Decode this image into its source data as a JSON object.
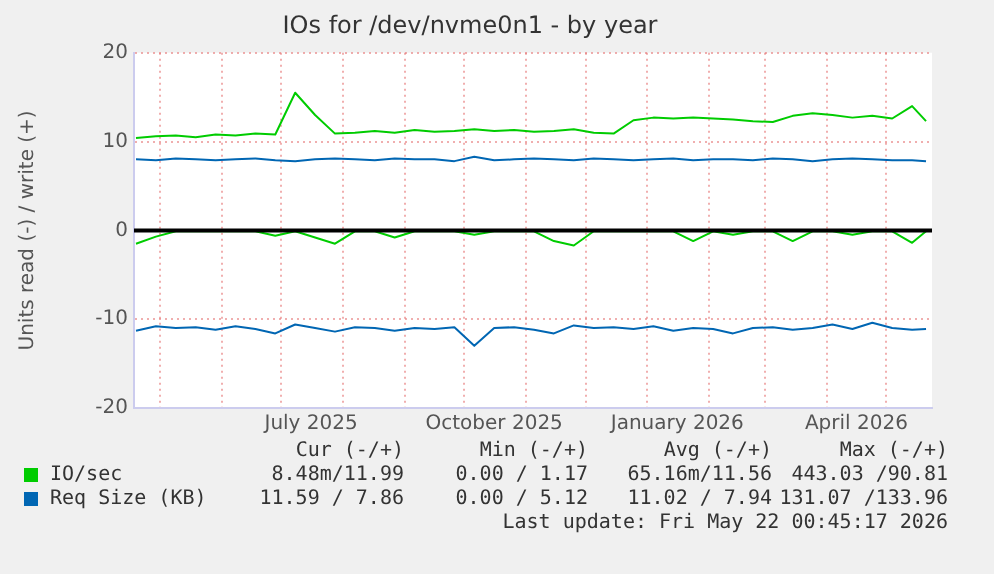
{
  "chart_data": {
    "type": "line",
    "title": "IOs for /dev/nvme0n1 - by year",
    "ylabel": "Units read (-) / write (+)",
    "x": [
      "2025-04-19",
      "2025-04-29",
      "2025-05-09",
      "2025-05-19",
      "2025-05-29",
      "2025-06-08",
      "2025-06-18",
      "2025-06-28",
      "2025-07-08",
      "2025-07-18",
      "2025-07-28",
      "2025-08-07",
      "2025-08-17",
      "2025-08-27",
      "2025-09-06",
      "2025-09-16",
      "2025-09-26",
      "2025-10-06",
      "2025-10-16",
      "2025-10-26",
      "2025-11-05",
      "2025-11-15",
      "2025-11-25",
      "2025-12-05",
      "2025-12-15",
      "2025-12-25",
      "2026-01-04",
      "2026-01-14",
      "2026-01-24",
      "2026-02-03",
      "2026-02-13",
      "2026-02-23",
      "2026-03-05",
      "2026-03-15",
      "2026-03-25",
      "2026-04-04",
      "2026-04-14",
      "2026-04-24",
      "2026-05-04",
      "2026-05-14",
      "2026-05-21"
    ],
    "series": [
      {
        "color": "#00cc00",
        "values": [
          -1.5,
          -0.7,
          -0.1,
          -0.1,
          -0.1,
          -0.1,
          -0.1,
          -0.6,
          -0.1,
          -0.8,
          -1.5,
          -0.1,
          -0.1,
          -0.8,
          -0.1,
          -0.1,
          -0.1,
          -0.5,
          -0.1,
          -0.1,
          -0.1,
          -1.2,
          -1.7,
          -0.1,
          -0.1,
          -0.1,
          -0.1,
          -0.1,
          -1.2,
          -0.1,
          -0.5,
          -0.1,
          -0.1,
          -1.2,
          -0.1,
          -0.1,
          -0.5,
          -0.1,
          -0.1,
          -1.4,
          -0.1
        ]
      },
      {
        "name": "IO/sec",
        "color": "#00cc00",
        "values": [
          10.4,
          10.6,
          10.7,
          10.5,
          10.8,
          10.7,
          10.9,
          10.8,
          15.5,
          13.0,
          10.9,
          11.0,
          11.2,
          11.0,
          11.3,
          11.1,
          11.2,
          11.4,
          11.2,
          11.3,
          11.1,
          11.2,
          11.4,
          11.0,
          10.9,
          12.4,
          12.7,
          12.6,
          12.7,
          12.6,
          12.5,
          12.3,
          12.2,
          12.9,
          13.2,
          13.0,
          12.7,
          12.9,
          12.6,
          14.0,
          12.3
        ]
      },
      {
        "color": "#0066b3",
        "values": [
          -11.3,
          -10.8,
          -11.0,
          -10.9,
          -11.2,
          -10.8,
          -11.1,
          -11.6,
          -10.6,
          -11.0,
          -11.4,
          -10.9,
          -11.0,
          -11.3,
          -11.0,
          -11.1,
          -10.9,
          -13.0,
          -11.0,
          -10.9,
          -11.2,
          -11.6,
          -10.7,
          -11.0,
          -10.9,
          -11.1,
          -10.8,
          -11.3,
          -11.0,
          -11.1,
          -11.6,
          -11.0,
          -10.9,
          -11.2,
          -11.0,
          -10.6,
          -11.1,
          -10.4,
          -11.0,
          -11.2,
          -11.1
        ]
      },
      {
        "name": "Req Size (KB)",
        "color": "#0066b3",
        "values": [
          8.0,
          7.9,
          8.1,
          8.0,
          7.9,
          8.0,
          8.1,
          7.9,
          7.8,
          8.0,
          8.1,
          8.0,
          7.9,
          8.1,
          8.0,
          8.0,
          7.8,
          8.3,
          7.9,
          8.0,
          8.1,
          8.0,
          7.9,
          8.1,
          8.0,
          7.9,
          8.0,
          8.1,
          7.9,
          8.0,
          8.0,
          7.9,
          8.1,
          8.0,
          7.8,
          8.0,
          8.1,
          8.0,
          7.9,
          7.9,
          7.8
        ]
      }
    ],
    "xlim": [
      "2025-04-18",
      "2026-05-24"
    ],
    "xticks": [
      {
        "value": "2025-05-01",
        "label": null
      },
      {
        "value": "2025-06-01",
        "label": null
      },
      {
        "value": "2025-07-01",
        "label": null
      },
      {
        "value": "2025-07-16",
        "label": "July 2025"
      },
      {
        "value": "2025-08-01",
        "label": null
      },
      {
        "value": "2025-09-01",
        "label": null
      },
      {
        "value": "2025-10-01",
        "label": null
      },
      {
        "value": "2025-10-16",
        "label": "October 2025"
      },
      {
        "value": "2025-11-01",
        "label": null
      },
      {
        "value": "2025-12-01",
        "label": null
      },
      {
        "value": "2026-01-01",
        "label": null
      },
      {
        "value": "2026-01-16",
        "label": "January 2026"
      },
      {
        "value": "2026-02-01",
        "label": null
      },
      {
        "value": "2026-03-01",
        "label": null
      },
      {
        "value": "2026-04-01",
        "label": null
      },
      {
        "value": "2026-04-16",
        "label": "April 2026"
      },
      {
        "value": "2026-05-01",
        "label": null
      }
    ],
    "ylim": [
      -20,
      20
    ],
    "yticks": [
      -20,
      -10,
      0,
      10,
      20
    ],
    "ref_lines": [
      {
        "axis": "y",
        "value": 0,
        "color": "#000000"
      }
    ],
    "grid": true,
    "legend": "bottom",
    "marker": "none",
    "line_style": "solid",
    "annotations": [
      "Cur (-/+)",
      "Min (-/+)",
      "Avg (-/+)",
      "Max (-/+)",
      "8.48m/11.99",
      "0.00 / 1.17",
      "65.16m/11.56",
      "443.03 /90.81",
      "11.59 / 7.86",
      "0.00 / 5.12",
      "11.02 / 7.94",
      "131.07 /133.96",
      "Last update: Fri May 22 00:45:17 2026"
    ]
  }
}
